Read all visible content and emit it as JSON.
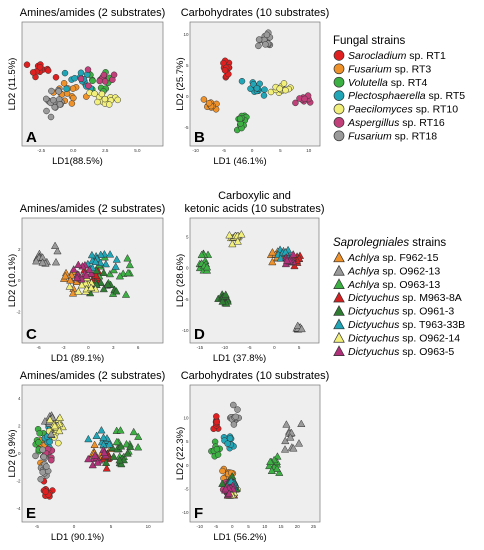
{
  "legends": {
    "fungal": {
      "title": "Fungal strains",
      "items": [
        {
          "genus": "Sarocladium",
          "rest": " sp. RT1",
          "color": "#e02020"
        },
        {
          "genus": "Fusarium",
          "rest": " sp. RT3",
          "color": "#f0922a"
        },
        {
          "genus": "Volutella",
          "rest": " sp. RT4",
          "color": "#3cb043"
        },
        {
          "genus": "Plectosphaerella",
          "rest": " sp. RT5",
          "color": "#21a6b8"
        },
        {
          "genus": "Paecilomyces",
          "rest": " sp. RT10",
          "color": "#f2f07a"
        },
        {
          "genus": "Aspergillus",
          "rest": " sp. RT16",
          "color": "#c2407a"
        },
        {
          "genus": "Fusarium",
          "rest": " sp. RT18",
          "color": "#9a9a9a"
        }
      ]
    },
    "sapro": {
      "title_italic": "Saprolegniales",
      "title_rest": " strains",
      "items": [
        {
          "genus": "Achlya",
          "rest": " sp. F962-15",
          "color": "#f0922a"
        },
        {
          "genus": "Achlya",
          "rest": " sp. O962-13",
          "color": "#9a9a9a"
        },
        {
          "genus": "Achlya",
          "rest": " sp. O963-13",
          "color": "#3cb043"
        },
        {
          "genus": "Dictyuchus",
          "rest": " sp. M963-8A",
          "color": "#d42020"
        },
        {
          "genus": "Dictyuchus",
          "rest": " sp. O961-3",
          "color": "#2e7d32"
        },
        {
          "genus": "Dictyuchus",
          "rest": " sp. T963-33B",
          "color": "#21a6b8"
        },
        {
          "genus": "Dictyuchus",
          "rest": " sp. O962-14",
          "color": "#f2f07a"
        },
        {
          "genus": "Dictyuchus",
          "rest": " sp. O963-5",
          "color": "#b0307a"
        }
      ]
    }
  },
  "chart_data": [
    {
      "type": "scatter",
      "panel": "A",
      "title": "Amines/amides (2 substrates)",
      "xlabel": "LD1(88.5%)",
      "ylabel": "LD2 (11.5%)",
      "marker": "circle",
      "legend": "fungal",
      "xlim": [
        -4,
        7
      ],
      "ylim": [
        -3,
        4
      ],
      "xticks": [
        "-2.5",
        "0.0",
        "2.5",
        "5.0"
      ],
      "yticks": [],
      "clusters": [
        {
          "series": 0,
          "cx": -2.5,
          "cy": 1.0,
          "sx": 0.8,
          "sy": 0.9,
          "n": 12
        },
        {
          "series": 1,
          "cx": -0.3,
          "cy": 0.0,
          "sx": 1.2,
          "sy": 0.5,
          "n": 14
        },
        {
          "series": 2,
          "cx": 1.8,
          "cy": 0.6,
          "sx": 1.6,
          "sy": 0.6,
          "n": 14
        },
        {
          "series": 3,
          "cx": 0.5,
          "cy": 0.7,
          "sx": 1.3,
          "sy": 0.5,
          "n": 12
        },
        {
          "series": 4,
          "cx": 2.5,
          "cy": -0.2,
          "sx": 0.9,
          "sy": 0.6,
          "n": 14
        },
        {
          "series": 5,
          "cx": 2.0,
          "cy": 0.9,
          "sx": 1.5,
          "sy": 0.5,
          "n": 12
        },
        {
          "series": 6,
          "cx": -1.5,
          "cy": -0.6,
          "sx": 0.8,
          "sy": 0.6,
          "n": 18
        }
      ]
    },
    {
      "type": "scatter",
      "panel": "B",
      "title": "Carbohydrates (10 substrates)",
      "xlabel": "LD1 (46.1%)",
      "ylabel": "LD2 (25.7%)",
      "marker": "circle",
      "legend": "fungal",
      "xlim": [
        -11,
        12
      ],
      "ylim": [
        -8,
        12
      ],
      "xticks": [
        "-10",
        "-5",
        "0",
        "5",
        "10"
      ],
      "yticks": [
        "10",
        "5",
        "0",
        "-5"
      ],
      "clusters": [
        {
          "series": 0,
          "cx": -4.5,
          "cy": 4.0,
          "sx": 0.7,
          "sy": 1.5,
          "n": 12
        },
        {
          "series": 1,
          "cx": -7.5,
          "cy": -1.5,
          "sx": 1.5,
          "sy": 0.8,
          "n": 14
        },
        {
          "series": 2,
          "cx": -2.0,
          "cy": -4.0,
          "sx": 0.9,
          "sy": 1.2,
          "n": 14
        },
        {
          "series": 3,
          "cx": 0.5,
          "cy": 1.0,
          "sx": 1.5,
          "sy": 1.0,
          "n": 14
        },
        {
          "series": 4,
          "cx": 4.5,
          "cy": 1.0,
          "sx": 1.8,
          "sy": 0.8,
          "n": 14
        },
        {
          "series": 5,
          "cx": 9.0,
          "cy": -0.5,
          "sx": 1.0,
          "sy": 0.8,
          "n": 10
        },
        {
          "series": 6,
          "cx": 2.5,
          "cy": 9.0,
          "sx": 1.2,
          "sy": 1.2,
          "n": 14
        }
      ]
    },
    {
      "type": "scatter",
      "panel": "C",
      "title": "Amines/amides (2 substrates)",
      "xlabel": "LD1 (89.1%)",
      "ylabel": "LD2 (10.1%)",
      "marker": "triangle",
      "legend": "sapro",
      "xlim": [
        -8,
        9
      ],
      "ylim": [
        -4,
        4
      ],
      "xticks": [
        "-6",
        "-3",
        "0",
        "3",
        "6"
      ],
      "yticks": [
        "2",
        "0",
        "-2"
      ],
      "clusters": [
        {
          "series": 0,
          "cx": -2.0,
          "cy": 0.2,
          "sx": 1.4,
          "sy": 0.8,
          "n": 12
        },
        {
          "series": 1,
          "cx": -5.5,
          "cy": 1.6,
          "sx": 1.3,
          "sy": 0.6,
          "n": 14
        },
        {
          "series": 2,
          "cx": 3.5,
          "cy": 0.2,
          "sx": 2.5,
          "sy": 1.2,
          "n": 16
        },
        {
          "series": 3,
          "cx": 0.5,
          "cy": 0.2,
          "sx": 1.0,
          "sy": 0.7,
          "n": 12
        },
        {
          "series": 4,
          "cx": 1.5,
          "cy": 0.0,
          "sx": 1.8,
          "sy": 1.0,
          "n": 12
        },
        {
          "series": 5,
          "cx": 1.5,
          "cy": 1.2,
          "sx": 2.0,
          "sy": 0.5,
          "n": 14
        },
        {
          "series": 6,
          "cx": -0.5,
          "cy": -0.4,
          "sx": 1.3,
          "sy": 0.8,
          "n": 14
        },
        {
          "series": 7,
          "cx": -1.0,
          "cy": 0.5,
          "sx": 1.0,
          "sy": 0.6,
          "n": 12
        }
      ]
    },
    {
      "type": "scatter",
      "panel": "D",
      "title": "Carboxylic and\nketonic acids (10 substrates)",
      "xlabel": "LD1 (37.8%)",
      "ylabel": "LD2 (28.6%)",
      "marker": "triangle",
      "legend": "sapro",
      "xlim": [
        -17,
        9
      ],
      "ylim": [
        -12,
        8
      ],
      "xticks": [
        "-15",
        "-10",
        "-5",
        "0",
        "5"
      ],
      "yticks": [
        "5",
        "0",
        "-5",
        "-10"
      ],
      "clusters": [
        {
          "series": 0,
          "cx": 0.5,
          "cy": 1.8,
          "sx": 1.2,
          "sy": 0.8,
          "n": 10
        },
        {
          "series": 1,
          "cx": 5.0,
          "cy": -9.5,
          "sx": 0.7,
          "sy": 0.6,
          "n": 10
        },
        {
          "series": 2,
          "cx": -14.0,
          "cy": 0.5,
          "sx": 1.2,
          "sy": 1.5,
          "n": 14
        },
        {
          "series": 3,
          "cx": 4.0,
          "cy": 1.5,
          "sx": 1.0,
          "sy": 1.0,
          "n": 12
        },
        {
          "series": 4,
          "cx": -10.0,
          "cy": -5.0,
          "sx": 1.2,
          "sy": 0.8,
          "n": 12
        },
        {
          "series": 5,
          "cx": 2.0,
          "cy": 2.5,
          "sx": 1.5,
          "sy": 0.8,
          "n": 12
        },
        {
          "series": 6,
          "cx": -8.0,
          "cy": 5.0,
          "sx": 1.2,
          "sy": 0.8,
          "n": 14
        },
        {
          "series": 7,
          "cx": 3.0,
          "cy": 1.5,
          "sx": 1.2,
          "sy": 0.8,
          "n": 12
        }
      ]
    },
    {
      "type": "scatter",
      "panel": "E",
      "title": "Amines/amides (2 substrates)",
      "xlabel": "LD1 (90.1%)",
      "ylabel": "LD2 (9.9%)",
      "marker": "mixed",
      "legend": "both",
      "xlim": [
        -7,
        12
      ],
      "ylim": [
        -5,
        5
      ],
      "xticks": [
        "-5",
        "0",
        "5",
        "10"
      ],
      "yticks": [
        "4",
        "2",
        "0",
        "-2",
        "-4"
      ],
      "clusters": [
        {
          "series": 0,
          "shape": "circle",
          "cx": -3.5,
          "cy": -2.7,
          "sx": 0.7,
          "sy": 0.4,
          "n": 10
        },
        {
          "series": 1,
          "shape": "circle",
          "cx": -4.0,
          "cy": 0.5,
          "sx": 0.8,
          "sy": 1.0,
          "n": 12
        },
        {
          "series": 2,
          "shape": "circle",
          "cx": -4.5,
          "cy": 0.5,
          "sx": 0.8,
          "sy": 1.0,
          "n": 12
        },
        {
          "series": 3,
          "shape": "circle",
          "cx": -3.5,
          "cy": 1.0,
          "sx": 0.7,
          "sy": 0.8,
          "n": 12
        },
        {
          "series": 4,
          "shape": "circle",
          "cx": -2.5,
          "cy": 1.5,
          "sx": 0.6,
          "sy": 0.7,
          "n": 14
        },
        {
          "series": 5,
          "shape": "circle",
          "cx": -3.5,
          "cy": 0.0,
          "sx": 0.7,
          "sy": 0.8,
          "n": 10
        },
        {
          "series": 6,
          "shape": "circle",
          "cx": -4.0,
          "cy": -1.0,
          "sx": 0.8,
          "sy": 1.2,
          "n": 14
        },
        {
          "series": 0,
          "shape": "triangle",
          "cx": 3.0,
          "cy": 0.0,
          "sx": 1.5,
          "sy": 0.7,
          "n": 10
        },
        {
          "series": 1,
          "shape": "triangle",
          "cx": -3.0,
          "cy": 2.5,
          "sx": 1.0,
          "sy": 1.0,
          "n": 12
        },
        {
          "series": 2,
          "shape": "triangle",
          "cx": 7.0,
          "cy": 0.5,
          "sx": 2.0,
          "sy": 1.2,
          "n": 14
        },
        {
          "series": 3,
          "shape": "triangle",
          "cx": 4.0,
          "cy": -0.5,
          "sx": 1.0,
          "sy": 0.6,
          "n": 10
        },
        {
          "series": 4,
          "shape": "triangle",
          "cx": 6.0,
          "cy": 0.0,
          "sx": 2.0,
          "sy": 1.0,
          "n": 12
        },
        {
          "series": 5,
          "shape": "triangle",
          "cx": 4.0,
          "cy": 1.0,
          "sx": 1.5,
          "sy": 0.7,
          "n": 12
        },
        {
          "series": 6,
          "shape": "triangle",
          "cx": -2.0,
          "cy": 2.0,
          "sx": 1.0,
          "sy": 1.0,
          "n": 12
        },
        {
          "series": 7,
          "shape": "triangle",
          "cx": 3.5,
          "cy": -0.3,
          "sx": 1.2,
          "sy": 0.7,
          "n": 10
        }
      ]
    },
    {
      "type": "scatter",
      "panel": "F",
      "title": "Carbohydrates (10 substrates)",
      "xlabel": "LD1 (56.2%)",
      "ylabel": "LD2 (22.3%)",
      "marker": "mixed",
      "legend": "both",
      "xlim": [
        -13,
        27
      ],
      "ylim": [
        -12,
        17
      ],
      "xticks": [
        "-10",
        "-5",
        "0",
        "5",
        "10",
        "15",
        "20",
        "25"
      ],
      "yticks": [
        "10",
        "5",
        "0",
        "-5",
        "-10"
      ],
      "clusters": [
        {
          "series": 0,
          "shape": "circle",
          "cx": -5.0,
          "cy": 9.0,
          "sx": 1.0,
          "sy": 1.5,
          "n": 10
        },
        {
          "series": 1,
          "shape": "circle",
          "cx": -2.0,
          "cy": -2.0,
          "sx": 1.5,
          "sy": 1.5,
          "n": 12
        },
        {
          "series": 2,
          "shape": "circle",
          "cx": -5.0,
          "cy": 3.0,
          "sx": 1.5,
          "sy": 2.0,
          "n": 12
        },
        {
          "series": 3,
          "shape": "circle",
          "cx": -1.0,
          "cy": 5.0,
          "sx": 1.5,
          "sy": 1.2,
          "n": 12
        },
        {
          "series": 4,
          "shape": "circle",
          "cx": 0.0,
          "cy": -5.0,
          "sx": 1.2,
          "sy": 1.0,
          "n": 10
        },
        {
          "series": 5,
          "shape": "circle",
          "cx": -2.0,
          "cy": -5.0,
          "sx": 1.2,
          "sy": 1.0,
          "n": 10
        },
        {
          "series": 6,
          "shape": "circle",
          "cx": 0.0,
          "cy": 10.0,
          "sx": 2.0,
          "sy": 2.0,
          "n": 14
        },
        {
          "series": 0,
          "shape": "triangle",
          "cx": 0.0,
          "cy": -4.0,
          "sx": 1.2,
          "sy": 1.0,
          "n": 10
        },
        {
          "series": 1,
          "shape": "triangle",
          "cx": 18.0,
          "cy": 6.0,
          "sx": 2.0,
          "sy": 2.5,
          "n": 12
        },
        {
          "series": 2,
          "shape": "triangle",
          "cx": 13.0,
          "cy": 0.0,
          "sx": 1.5,
          "sy": 2.0,
          "n": 12
        },
        {
          "series": 3,
          "shape": "triangle",
          "cx": -1.0,
          "cy": -6.0,
          "sx": 1.0,
          "sy": 1.0,
          "n": 10
        },
        {
          "series": 4,
          "shape": "triangle",
          "cx": -1.0,
          "cy": -4.0,
          "sx": 1.5,
          "sy": 1.5,
          "n": 12
        },
        {
          "series": 5,
          "shape": "triangle",
          "cx": 0.0,
          "cy": -4.0,
          "sx": 1.0,
          "sy": 1.0,
          "n": 10
        },
        {
          "series": 6,
          "shape": "triangle",
          "cx": 0.0,
          "cy": -6.0,
          "sx": 1.2,
          "sy": 1.0,
          "n": 10
        },
        {
          "series": 7,
          "shape": "triangle",
          "cx": -1.0,
          "cy": -5.0,
          "sx": 1.2,
          "sy": 1.0,
          "n": 10
        }
      ]
    }
  ]
}
